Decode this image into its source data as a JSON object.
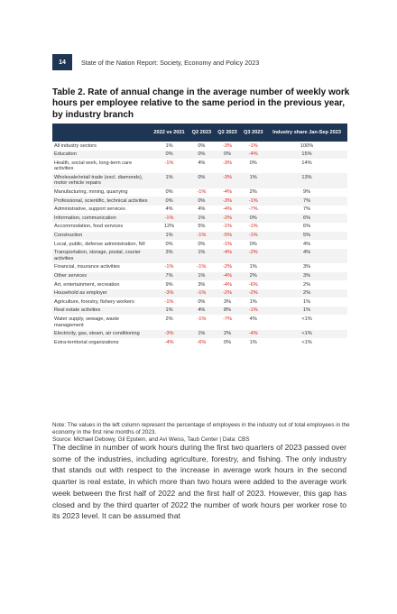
{
  "header": {
    "page_number": "14",
    "running_title": "State of the Nation Report: Society, Economy and Policy 2023"
  },
  "table_title": "Table 2. Rate of annual change in the average number of weekly work hours per employee relative to the same period in the previous year, by industry branch",
  "table": {
    "columns": [
      "",
      "2022 vs 2021",
      "Q2 2023",
      "Q2 2023",
      "Q3 2023",
      "Industry share Jan-Sep 2023"
    ],
    "rows": [
      [
        "All industry sectors",
        "1%",
        "0%",
        "-3%",
        "-1%",
        "100%"
      ],
      [
        "Education",
        "0%",
        "0%",
        "0%",
        "-4%",
        "15%"
      ],
      [
        "Health, social work, long-term care activities",
        "-1%",
        "4%",
        "-3%",
        "0%",
        "14%"
      ],
      [
        "Wholesale/retail trade (excl. diamonds), motor vehicle repairs",
        "1%",
        "0%",
        "-3%",
        "1%",
        "13%"
      ],
      [
        "Manufacturing, mining, quarrying",
        "0%",
        "-1%",
        "-4%",
        "2%",
        "9%"
      ],
      [
        "Professional, scientific, technical activities",
        "0%",
        "0%",
        "-3%",
        "-1%",
        "7%"
      ],
      [
        "Administrative, support services",
        "4%",
        "4%",
        "-4%",
        "-7%",
        "7%"
      ],
      [
        "Information, communication",
        "-1%",
        "1%",
        "-2%",
        "0%",
        "6%"
      ],
      [
        "Accommodation, food services",
        "12%",
        "5%",
        "-1%",
        "-1%",
        "6%"
      ],
      [
        "Construction",
        "1%",
        "-1%",
        "-5%",
        "-1%",
        "5%"
      ],
      [
        "Local, public, defense administration, NII",
        "0%",
        "0%",
        "-1%",
        "0%",
        "4%"
      ],
      [
        "Transportation, storage, postal, courier activities",
        "3%",
        "1%",
        "-4%",
        "-2%",
        "4%"
      ],
      [
        "Financial, insurance activities",
        "-1%",
        "-1%",
        "-2%",
        "1%",
        "3%"
      ],
      [
        "Other services",
        "7%",
        "1%",
        "-4%",
        "2%",
        "3%"
      ],
      [
        "Art, entertainment, recreation",
        "9%",
        "3%",
        "-4%",
        "-6%",
        "2%"
      ],
      [
        "Household as employer",
        "-3%",
        "-1%",
        "-2%",
        "-2%",
        "2%"
      ],
      [
        "Agriculture, forestry, fishery workers",
        "-1%",
        "0%",
        "3%",
        "1%",
        "1%"
      ],
      [
        "Real estate activities",
        "1%",
        "4%",
        "8%",
        "-1%",
        "1%"
      ],
      [
        "Water supply, sewage, waste management",
        "2%",
        "-1%",
        "-7%",
        "4%",
        "<1%"
      ],
      [
        "Electricity, gas, steam, air conditioning",
        "-3%",
        "1%",
        "2%",
        "-4%",
        "<1%"
      ],
      [
        "Extra-territorial organizations",
        "-4%",
        "-6%",
        "0%",
        "1%",
        "<1%"
      ]
    ]
  },
  "note": "Note: The values in the left column represent the percentage of employees in the industry out of total employees in the economy in the first nine months of 2023.",
  "source": "Source: Michael Debowy, Gil Epstein, and Avi Weiss, Taub Center | Data: CBS",
  "body_text": "The decline in number of work hours during the first two quarters of 2023 passed over some of the industries, including agriculture, forestry, and fishing. The only industry that stands out with respect to the increase in average work hours in the second quarter is real estate, in which more than two hours were added to the average work week between the first half of 2022 and the first half of 2023. However, this gap has closed and by the third quarter of 2022 the number of work hours per worker rose to its 2023 level. It can be assumed that"
}
